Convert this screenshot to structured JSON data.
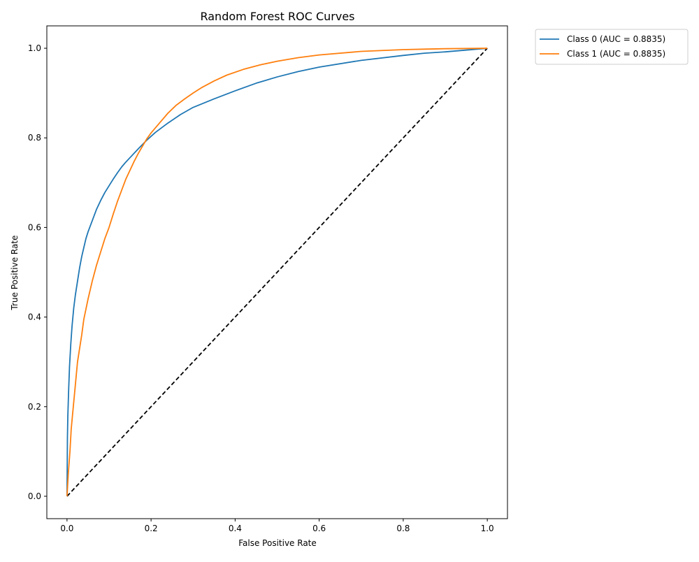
{
  "chart_data": {
    "type": "line",
    "title": "Random Forest ROC Curves",
    "xlabel": "False Positive Rate",
    "ylabel": "True Positive Rate",
    "xlim": [
      -0.048,
      1.048
    ],
    "ylim": [
      -0.05,
      1.05
    ],
    "xticks": [
      0.0,
      0.2,
      0.4,
      0.6,
      0.8,
      1.0
    ],
    "xtick_labels": [
      "0.0",
      "0.2",
      "0.4",
      "0.6",
      "0.8",
      "1.0"
    ],
    "yticks": [
      0.0,
      0.2,
      0.4,
      0.6,
      0.8,
      1.0
    ],
    "ytick_labels": [
      "0.0",
      "0.2",
      "0.4",
      "0.6",
      "0.8",
      "1.0"
    ],
    "grid": false,
    "legend_position": "outside-top-right",
    "series": [
      {
        "name": "Class 0 (AUC = 0.8835)",
        "color": "#1f77b4",
        "x": [
          0.0,
          0.001,
          0.002,
          0.004,
          0.006,
          0.009,
          0.012,
          0.016,
          0.02,
          0.025,
          0.03,
          0.035,
          0.04,
          0.045,
          0.05,
          0.06,
          0.07,
          0.08,
          0.09,
          0.1,
          0.11,
          0.12,
          0.13,
          0.14,
          0.15,
          0.17,
          0.19,
          0.21,
          0.24,
          0.27,
          0.3,
          0.35,
          0.4,
          0.45,
          0.5,
          0.55,
          0.6,
          0.7,
          0.8,
          0.85,
          0.9,
          1.0
        ],
        "y": [
          0.0,
          0.13,
          0.18,
          0.24,
          0.29,
          0.34,
          0.38,
          0.42,
          0.45,
          0.48,
          0.51,
          0.535,
          0.555,
          0.575,
          0.59,
          0.615,
          0.64,
          0.66,
          0.678,
          0.693,
          0.708,
          0.722,
          0.735,
          0.746,
          0.756,
          0.776,
          0.795,
          0.812,
          0.833,
          0.852,
          0.868,
          0.887,
          0.905,
          0.922,
          0.936,
          0.948,
          0.958,
          0.973,
          0.984,
          0.989,
          0.992,
          1.0
        ]
      },
      {
        "name": "Class 1 (AUC = 0.8835)",
        "color": "#ff7f0e",
        "x": [
          0.0,
          0.003,
          0.007,
          0.01,
          0.015,
          0.02,
          0.025,
          0.03,
          0.035,
          0.04,
          0.05,
          0.06,
          0.07,
          0.08,
          0.09,
          0.1,
          0.11,
          0.12,
          0.13,
          0.14,
          0.15,
          0.16,
          0.17,
          0.18,
          0.19,
          0.2,
          0.22,
          0.24,
          0.26,
          0.28,
          0.3,
          0.32,
          0.35,
          0.38,
          0.42,
          0.46,
          0.5,
          0.55,
          0.6,
          0.7,
          0.8,
          0.85,
          0.9,
          1.0
        ],
        "y": [
          0.0,
          0.05,
          0.1,
          0.15,
          0.2,
          0.25,
          0.3,
          0.33,
          0.36,
          0.395,
          0.44,
          0.48,
          0.515,
          0.545,
          0.575,
          0.6,
          0.63,
          0.658,
          0.683,
          0.708,
          0.728,
          0.748,
          0.766,
          0.782,
          0.798,
          0.811,
          0.833,
          0.855,
          0.873,
          0.887,
          0.9,
          0.912,
          0.927,
          0.94,
          0.953,
          0.963,
          0.971,
          0.979,
          0.985,
          0.993,
          0.997,
          0.998,
          0.999,
          1.0
        ]
      }
    ],
    "reference_line": {
      "x": [
        0.0,
        1.0
      ],
      "y": [
        0.0,
        1.0
      ],
      "color": "#000000",
      "style": "dashed"
    }
  }
}
